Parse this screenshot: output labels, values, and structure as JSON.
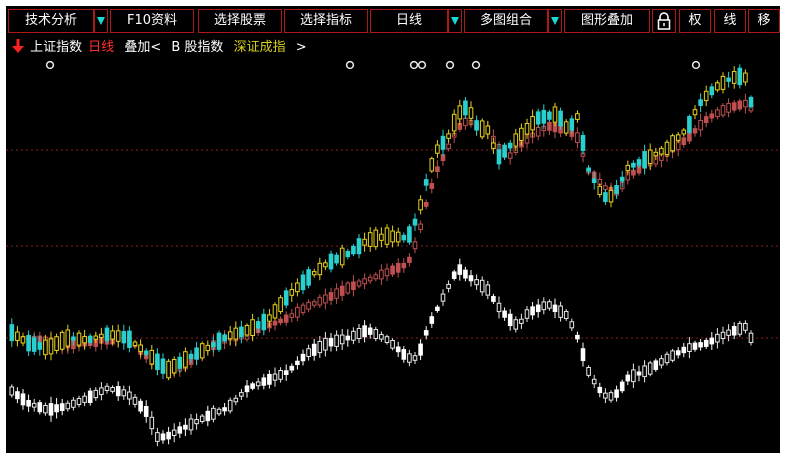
{
  "toolbar": {
    "technical_analysis": "技术分析",
    "f10": "F10资料",
    "select_stock": "选择股票",
    "select_indicator": "选择指标",
    "period": "日线",
    "multi_chart": "多图组合",
    "overlay": "图形叠加",
    "rights": "权",
    "line": "线",
    "move": "移"
  },
  "subheader": {
    "index_name": "上证指数",
    "period": "日线",
    "overlay_label": "叠加<",
    "b_index": "B 股指数",
    "shenzhen": "深证成指",
    "arrow_right": ">"
  },
  "colors": {
    "background": "#000000",
    "border": "#b01818",
    "up_candle": "#e8e8e8",
    "down_candle": "#ffffff",
    "shanghai_up": "#e6d219",
    "shanghai_down": "#28d0d0",
    "b_index": "#c05050",
    "shenzhen": "#e8e8e8",
    "grid": "#8a1a1a"
  },
  "icons": {
    "lock": "lock-icon",
    "dropdown": "triangle-down-icon",
    "down_arrow": "red-down-arrow-icon",
    "event_marker": "gear-marker-icon"
  }
}
